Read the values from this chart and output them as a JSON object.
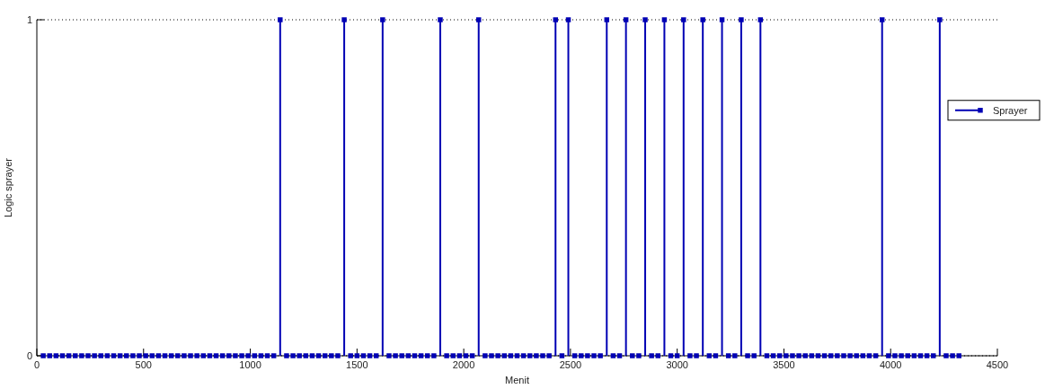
{
  "chart_data": {
    "type": "lollipop",
    "xlabel": "Menit",
    "ylabel": "Logic sprayer",
    "x": [
      30,
      60,
      90,
      120,
      150,
      180,
      210,
      240,
      270,
      300,
      330,
      360,
      390,
      420,
      450,
      480,
      510,
      540,
      570,
      600,
      630,
      660,
      690,
      720,
      750,
      780,
      810,
      840,
      870,
      900,
      930,
      960,
      990,
      1020,
      1050,
      1080,
      1110,
      1140,
      1170,
      1200,
      1230,
      1260,
      1290,
      1320,
      1350,
      1380,
      1410,
      1440,
      1470,
      1500,
      1530,
      1560,
      1590,
      1620,
      1650,
      1680,
      1710,
      1740,
      1770,
      1800,
      1830,
      1860,
      1890,
      1920,
      1950,
      1980,
      2010,
      2040,
      2070,
      2100,
      2130,
      2160,
      2190,
      2220,
      2250,
      2280,
      2310,
      2340,
      2370,
      2400,
      2430,
      2460,
      2490,
      2520,
      2550,
      2580,
      2610,
      2640,
      2670,
      2700,
      2730,
      2760,
      2790,
      2820,
      2850,
      2880,
      2910,
      2940,
      2970,
      3000,
      3030,
      3060,
      3090,
      3120,
      3150,
      3180,
      3210,
      3240,
      3270,
      3300,
      3330,
      3360,
      3390,
      3420,
      3450,
      3480,
      3510,
      3540,
      3570,
      3600,
      3630,
      3660,
      3690,
      3720,
      3750,
      3780,
      3810,
      3840,
      3870,
      3900,
      3930,
      3960,
      3990,
      4020,
      4050,
      4080,
      4110,
      4140,
      4170,
      4200,
      4230,
      4260,
      4290,
      4320
    ],
    "series": [
      {
        "name": "Sprayer",
        "color": "#0000b4",
        "values": [
          0,
          0,
          0,
          0,
          0,
          0,
          0,
          0,
          0,
          0,
          0,
          0,
          0,
          0,
          0,
          0,
          0,
          0,
          0,
          0,
          0,
          0,
          0,
          0,
          0,
          0,
          0,
          0,
          0,
          0,
          0,
          0,
          0,
          0,
          0,
          0,
          0,
          1,
          0,
          0,
          0,
          0,
          0,
          0,
          0,
          0,
          0,
          1,
          0,
          0,
          0,
          0,
          0,
          1,
          0,
          0,
          0,
          0,
          0,
          0,
          0,
          0,
          1,
          0,
          0,
          0,
          0,
          0,
          1,
          0,
          0,
          0,
          0,
          0,
          0,
          0,
          0,
          0,
          0,
          0,
          1,
          0,
          1,
          0,
          0,
          0,
          0,
          0,
          1,
          0,
          0,
          1,
          0,
          0,
          1,
          0,
          0,
          1,
          0,
          0,
          1,
          0,
          0,
          1,
          0,
          0,
          1,
          0,
          0,
          1,
          0,
          0,
          1,
          0,
          0,
          0,
          0,
          0,
          0,
          0,
          0,
          0,
          0,
          0,
          0,
          0,
          0,
          0,
          0,
          0,
          0,
          1,
          0,
          0,
          0,
          0,
          0,
          0,
          0,
          0,
          1,
          0,
          0,
          0
        ]
      }
    ],
    "xlim": [
      0,
      4500
    ],
    "xticks": [
      0,
      500,
      1000,
      1500,
      2000,
      2500,
      3000,
      3500,
      4000,
      4500
    ],
    "ylim": [
      0,
      1
    ],
    "yticks": [
      0,
      1
    ],
    "grid": "y",
    "legend": "right",
    "marker": "square"
  }
}
